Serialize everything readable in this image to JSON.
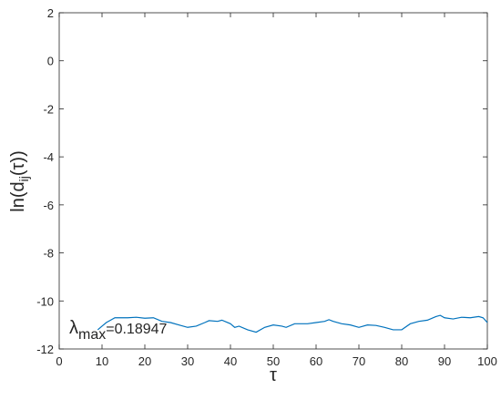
{
  "chart_data": {
    "type": "line",
    "x_label": "τ",
    "y_label": {
      "main": "ln(d",
      "subscript": "ij",
      "end": "(τ))"
    },
    "annotation": {
      "symbol": "λ",
      "subscript": "max",
      "text": "=0.18947"
    },
    "x": [
      9,
      10,
      11,
      12,
      13,
      14,
      16,
      18,
      20,
      22,
      24,
      26,
      28,
      30,
      32,
      34,
      35,
      37,
      38,
      40,
      41,
      42,
      44,
      46,
      48,
      50,
      52,
      53,
      55,
      58,
      60,
      62,
      63,
      64,
      66,
      68,
      70,
      72,
      74,
      76,
      78,
      80,
      82,
      84,
      86,
      88,
      89,
      90,
      92,
      94,
      96,
      98,
      99,
      100
    ],
    "series": [
      {
        "name": "ln(d)",
        "color": "#0072bd",
        "values": [
          -11.2,
          -11.05,
          -10.9,
          -10.8,
          -10.7,
          -10.7,
          -10.7,
          -10.68,
          -10.72,
          -10.7,
          -10.85,
          -10.9,
          -11.0,
          -11.1,
          -11.05,
          -10.9,
          -10.82,
          -10.85,
          -10.8,
          -10.95,
          -11.1,
          -11.05,
          -11.2,
          -11.3,
          -11.1,
          -11.0,
          -11.05,
          -11.1,
          -10.95,
          -10.95,
          -10.9,
          -10.85,
          -10.78,
          -10.85,
          -10.95,
          -11.0,
          -11.1,
          -11.0,
          -11.02,
          -11.1,
          -11.2,
          -11.2,
          -10.95,
          -10.85,
          -10.8,
          -10.65,
          -10.6,
          -10.7,
          -10.75,
          -10.68,
          -10.7,
          -10.65,
          -10.7,
          -10.9
        ]
      }
    ],
    "xlim": [
      0,
      100
    ],
    "ylim": [
      -12,
      2
    ],
    "xticks": [
      0,
      10,
      20,
      30,
      40,
      50,
      60,
      70,
      80,
      90,
      100
    ],
    "yticks": [
      -12,
      -10,
      -8,
      -6,
      -4,
      -2,
      0,
      2
    ],
    "grid": false
  }
}
